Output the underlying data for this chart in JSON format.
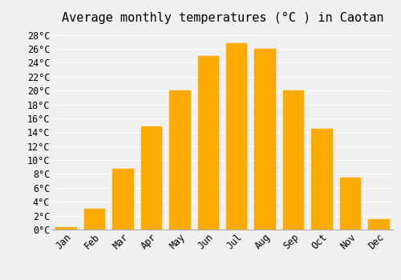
{
  "title": "Average monthly temperatures (°C ) in Caotan",
  "months": [
    "Jan",
    "Feb",
    "Mar",
    "Apr",
    "May",
    "Jun",
    "Jul",
    "Aug",
    "Sep",
    "Oct",
    "Nov",
    "Dec"
  ],
  "values": [
    0.3,
    3.0,
    8.7,
    14.8,
    20.0,
    25.0,
    26.8,
    26.0,
    20.0,
    14.5,
    7.5,
    1.5
  ],
  "bar_color": "#FFAA00",
  "bar_edge_color": "#FFAA00",
  "background_color": "#f0f0f0",
  "grid_color": "#ffffff",
  "ylim": [
    0,
    29
  ],
  "yticks": [
    0,
    2,
    4,
    6,
    8,
    10,
    12,
    14,
    16,
    18,
    20,
    22,
    24,
    26,
    28
  ],
  "title_fontsize": 11,
  "tick_fontsize": 8.5,
  "font_family": "monospace"
}
